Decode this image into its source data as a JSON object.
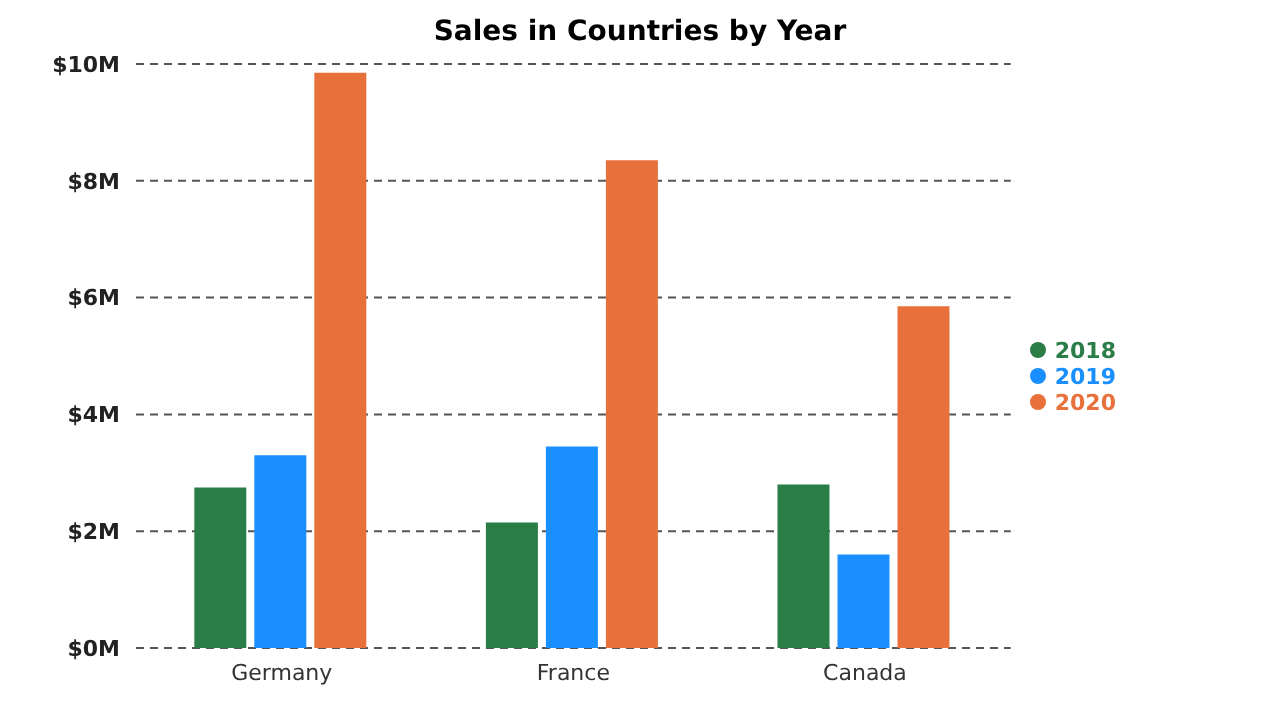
{
  "chart_data": {
    "type": "bar",
    "title": "Sales in Countries by Year",
    "categories": [
      "Germany",
      "France",
      "Canada"
    ],
    "series": [
      {
        "name": "2018",
        "color": "#2a7d47",
        "values": [
          2.75,
          2.15,
          2.8
        ]
      },
      {
        "name": "2019",
        "color": "#1a8fff",
        "values": [
          3.3,
          3.45,
          1.6
        ]
      },
      {
        "name": "2020",
        "color": "#e8703a",
        "values": [
          9.85,
          8.35,
          5.85
        ]
      }
    ],
    "ylim": [
      0,
      10
    ],
    "yticks": [
      {
        "value": 0,
        "label": "$0M"
      },
      {
        "value": 2,
        "label": "$2M"
      },
      {
        "value": 4,
        "label": "$4M"
      },
      {
        "value": 6,
        "label": "$6M"
      },
      {
        "value": 8,
        "label": "$8M"
      },
      {
        "value": 10,
        "label": "$10M"
      }
    ],
    "grid": "y",
    "legend": "right"
  }
}
